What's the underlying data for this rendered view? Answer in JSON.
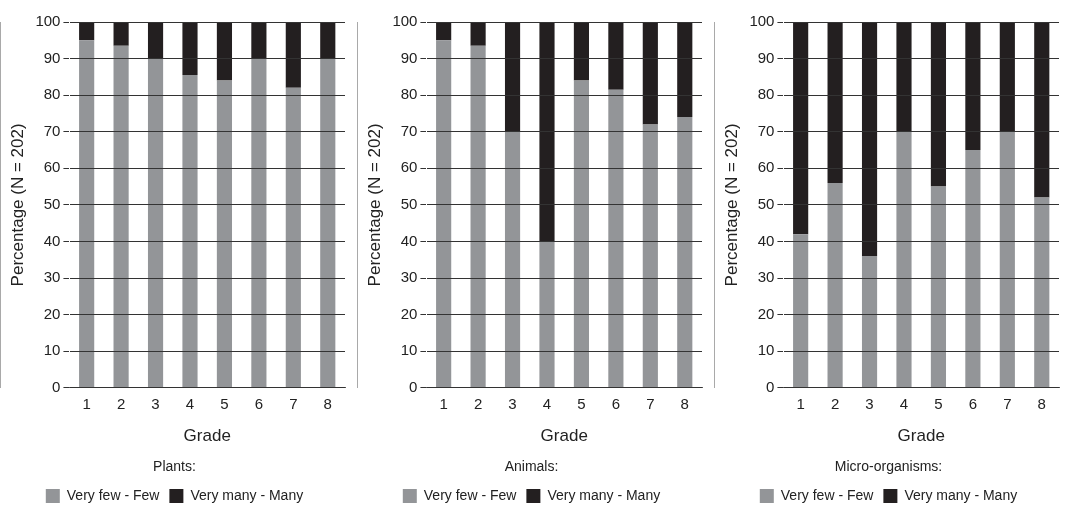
{
  "chart_data": [
    {
      "type": "bar",
      "stacked": true,
      "legend_title": "Plants:",
      "xlabel": "Grade",
      "ylabel": "Percentage (N = 202)",
      "categories": [
        "1",
        "2",
        "3",
        "4",
        "5",
        "6",
        "7",
        "8"
      ],
      "ylim": [
        0,
        100
      ],
      "yticks": [
        0,
        10,
        20,
        30,
        40,
        50,
        60,
        70,
        80,
        90,
        100
      ],
      "grid": "y",
      "legend": "bottom",
      "series": [
        {
          "name": "Very few - Few",
          "color": "#939598",
          "values": [
            95,
            93.5,
            90,
            85.5,
            84,
            90,
            82,
            90
          ]
        },
        {
          "name": "Very many - Many",
          "color": "#231f20",
          "values": [
            5,
            6.5,
            10,
            14.5,
            16,
            10,
            18,
            10
          ]
        }
      ]
    },
    {
      "type": "bar",
      "stacked": true,
      "legend_title": "Animals:",
      "xlabel": "Grade",
      "ylabel": "Percentage (N = 202)",
      "categories": [
        "1",
        "2",
        "3",
        "4",
        "5",
        "6",
        "7",
        "8"
      ],
      "ylim": [
        0,
        100
      ],
      "yticks": [
        0,
        10,
        20,
        30,
        40,
        50,
        60,
        70,
        80,
        90,
        100
      ],
      "grid": "y",
      "legend": "bottom",
      "series": [
        {
          "name": "Very few - Few",
          "color": "#939598",
          "values": [
            95,
            93.5,
            70,
            40,
            84,
            81.5,
            72,
            74
          ]
        },
        {
          "name": "Very many - Many",
          "color": "#231f20",
          "values": [
            5,
            6.5,
            30,
            60,
            16,
            18.5,
            28,
            26
          ]
        }
      ]
    },
    {
      "type": "bar",
      "stacked": true,
      "legend_title": "Micro-organisms:",
      "xlabel": "Grade",
      "ylabel": "Percentage (N = 202)",
      "categories": [
        "1",
        "2",
        "3",
        "4",
        "5",
        "6",
        "7",
        "8"
      ],
      "ylim": [
        0,
        100
      ],
      "yticks": [
        0,
        10,
        20,
        30,
        40,
        50,
        60,
        70,
        80,
        90,
        100
      ],
      "grid": "y",
      "legend": "bottom",
      "series": [
        {
          "name": "Very few - Few",
          "color": "#939598",
          "values": [
            42,
            56,
            36,
            70,
            55,
            65,
            70,
            52
          ]
        },
        {
          "name": "Very many - Many",
          "color": "#231f20",
          "values": [
            58,
            44,
            64,
            30,
            45,
            35,
            30,
            48
          ]
        }
      ]
    }
  ]
}
